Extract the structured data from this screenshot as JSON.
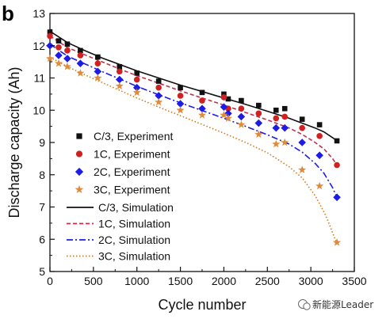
{
  "panel_label": "b",
  "watermark": {
    "text": "新能源Leader",
    "icon": "wechat-icon"
  },
  "chart_data": {
    "type": "line",
    "xlabel": "Cycle number",
    "ylabel": "Discharge capacity (Ah)",
    "xlim": [
      0,
      3500
    ],
    "ylim": [
      5,
      13
    ],
    "xticks": [
      0,
      500,
      1000,
      1500,
      2000,
      2500,
      3000,
      3500
    ],
    "yticks": [
      5,
      6,
      7,
      8,
      9,
      10,
      11,
      12,
      13
    ],
    "grid": false,
    "legend_position": "bottom-left",
    "experiment": [
      {
        "name": "C/3, Experiment",
        "marker": "square",
        "color": "#111111",
        "x": [
          0,
          100,
          200,
          350,
          550,
          800,
          1000,
          1250,
          1500,
          1750,
          2000,
          2050,
          2200,
          2400,
          2600,
          2700,
          2900,
          3100,
          3300
        ],
        "y": [
          12.42,
          12.15,
          12.05,
          11.85,
          11.65,
          11.35,
          11.15,
          10.9,
          10.7,
          10.55,
          10.5,
          10.35,
          10.3,
          10.15,
          10.0,
          10.05,
          9.72,
          9.55,
          9.05
        ]
      },
      {
        "name": "1C, Experiment",
        "marker": "circle",
        "color": "#d02020",
        "x": [
          0,
          100,
          200,
          350,
          550,
          800,
          1000,
          1250,
          1500,
          1750,
          2000,
          2050,
          2200,
          2400,
          2600,
          2700,
          2900,
          3100,
          3300
        ],
        "y": [
          12.3,
          11.95,
          11.85,
          11.7,
          11.45,
          11.2,
          10.95,
          10.7,
          10.45,
          10.3,
          10.4,
          10.05,
          10.05,
          9.9,
          9.75,
          9.8,
          9.45,
          9.2,
          8.3
        ]
      },
      {
        "name": "2C, Experiment",
        "marker": "diamond",
        "color": "#1c1ce6",
        "x": [
          0,
          100,
          200,
          350,
          550,
          800,
          1000,
          1250,
          1500,
          1750,
          2000,
          2050,
          2200,
          2400,
          2600,
          2700,
          2900,
          3100,
          3300
        ],
        "y": [
          12.0,
          11.7,
          11.6,
          11.45,
          11.2,
          10.95,
          10.7,
          10.45,
          10.2,
          10.05,
          10.1,
          9.9,
          9.8,
          9.6,
          9.45,
          9.45,
          9.0,
          8.6,
          7.3
        ]
      },
      {
        "name": "3C, Experiment",
        "marker": "star",
        "color": "#e08a3c",
        "x": [
          0,
          100,
          200,
          350,
          550,
          800,
          1000,
          1250,
          1500,
          1750,
          2000,
          2050,
          2200,
          2400,
          2600,
          2700,
          2900,
          3100,
          3300
        ],
        "y": [
          11.6,
          11.45,
          11.35,
          11.15,
          11.0,
          10.75,
          10.55,
          10.25,
          10.0,
          9.85,
          9.85,
          9.75,
          9.55,
          9.25,
          8.95,
          9.0,
          8.15,
          7.65,
          5.9
        ]
      }
    ],
    "simulation": [
      {
        "name": "C/3, Simulation",
        "style": "solid",
        "color": "#111111",
        "x": [
          0,
          200,
          400,
          600,
          800,
          1000,
          1250,
          1500,
          1750,
          2000,
          2250,
          2500,
          2750,
          2900,
          3050,
          3150,
          3250,
          3300
        ],
        "y": [
          12.45,
          12.1,
          11.85,
          11.62,
          11.42,
          11.22,
          11.0,
          10.78,
          10.58,
          10.38,
          10.18,
          9.97,
          9.75,
          9.6,
          9.45,
          9.33,
          9.15,
          9.05
        ]
      },
      {
        "name": "1C, Simulation",
        "style": "dashed",
        "color": "#c0304a",
        "x": [
          0,
          200,
          400,
          600,
          800,
          1000,
          1250,
          1500,
          1750,
          2000,
          2250,
          2500,
          2750,
          2900,
          3050,
          3150,
          3250,
          3300
        ],
        "y": [
          12.3,
          11.95,
          11.72,
          11.5,
          11.28,
          11.07,
          10.84,
          10.6,
          10.38,
          10.16,
          9.93,
          9.7,
          9.45,
          9.25,
          9.0,
          8.8,
          8.5,
          8.3
        ]
      },
      {
        "name": "2C, Simulation",
        "style": "dashdot",
        "color": "#1c1ce6",
        "x": [
          0,
          200,
          400,
          600,
          800,
          1000,
          1250,
          1500,
          1750,
          2000,
          2250,
          2500,
          2750,
          2900,
          3050,
          3150,
          3250,
          3300
        ],
        "y": [
          12.05,
          11.68,
          11.44,
          11.2,
          10.97,
          10.74,
          10.48,
          10.23,
          9.99,
          9.75,
          9.5,
          9.24,
          8.95,
          8.7,
          8.35,
          8.05,
          7.6,
          7.3
        ]
      },
      {
        "name": "3C, Simulation",
        "style": "dotted",
        "color": "#d07a1a",
        "x": [
          0,
          200,
          400,
          600,
          800,
          1000,
          1250,
          1500,
          1750,
          2000,
          2250,
          2500,
          2750,
          2900,
          3050,
          3150,
          3200,
          3250,
          3300
        ],
        "y": [
          11.65,
          11.35,
          11.1,
          10.86,
          10.62,
          10.38,
          10.1,
          9.83,
          9.56,
          9.29,
          9.0,
          8.68,
          8.25,
          7.9,
          7.35,
          6.85,
          6.55,
          6.2,
          5.85
        ]
      }
    ]
  }
}
